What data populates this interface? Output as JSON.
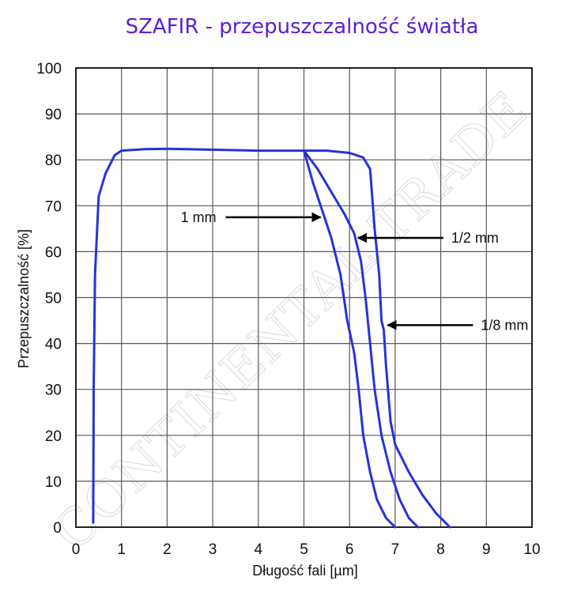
{
  "chart_data": {
    "type": "line",
    "title": "SZAFIR - przepuszczalność światła",
    "xlabel": "Długość fali [µm]",
    "ylabel": "Przepuszczalność [%]",
    "xlim": [
      0,
      10
    ],
    "ylim": [
      0,
      100
    ],
    "x_ticks": [
      0,
      1,
      2,
      3,
      4,
      5,
      6,
      7,
      8,
      9,
      10
    ],
    "y_ticks": [
      0,
      10,
      20,
      30,
      40,
      50,
      60,
      70,
      80,
      90,
      100
    ],
    "grid": true,
    "line_color": "#2733d6",
    "series": [
      {
        "name": "1/8 mm",
        "points": [
          [
            0.38,
            1
          ],
          [
            0.39,
            30
          ],
          [
            0.42,
            55
          ],
          [
            0.5,
            72
          ],
          [
            0.65,
            77
          ],
          [
            0.85,
            81
          ],
          [
            1.0,
            82
          ],
          [
            1.5,
            82.3
          ],
          [
            2.0,
            82.4
          ],
          [
            3.0,
            82.2
          ],
          [
            4.0,
            82.0
          ],
          [
            5.0,
            82.0
          ],
          [
            5.5,
            82.0
          ],
          [
            6.0,
            81.5
          ],
          [
            6.3,
            80.5
          ],
          [
            6.45,
            78
          ],
          [
            6.55,
            65
          ],
          [
            6.65,
            55
          ],
          [
            6.7,
            45
          ],
          [
            6.75,
            43
          ],
          [
            6.8,
            35
          ],
          [
            6.9,
            23
          ],
          [
            7.0,
            18
          ],
          [
            7.3,
            12
          ],
          [
            7.6,
            7
          ],
          [
            7.9,
            3
          ],
          [
            8.2,
            0
          ]
        ]
      },
      {
        "name": "1/2 mm",
        "points": [
          [
            5.0,
            82.0
          ],
          [
            5.3,
            78
          ],
          [
            5.6,
            73
          ],
          [
            5.9,
            68
          ],
          [
            6.1,
            64
          ],
          [
            6.25,
            58
          ],
          [
            6.35,
            50
          ],
          [
            6.45,
            40
          ],
          [
            6.55,
            30
          ],
          [
            6.7,
            20
          ],
          [
            6.9,
            12
          ],
          [
            7.1,
            6
          ],
          [
            7.3,
            2
          ],
          [
            7.5,
            0
          ]
        ]
      },
      {
        "name": "1 mm",
        "points": [
          [
            5.0,
            82.0
          ],
          [
            5.2,
            75
          ],
          [
            5.4,
            69
          ],
          [
            5.6,
            63
          ],
          [
            5.8,
            55
          ],
          [
            5.95,
            45
          ],
          [
            6.1,
            38
          ],
          [
            6.2,
            30
          ],
          [
            6.3,
            20
          ],
          [
            6.45,
            12
          ],
          [
            6.6,
            6
          ],
          [
            6.8,
            2
          ],
          [
            7.0,
            0
          ]
        ]
      }
    ],
    "annotations": [
      {
        "text": "1 mm",
        "target": [
          5.4,
          67.5
        ],
        "side": "left"
      },
      {
        "text": "1/2 mm",
        "target": [
          6.15,
          63
        ],
        "side": "right"
      },
      {
        "text": "1/8 mm",
        "target": [
          6.8,
          44
        ],
        "side": "right"
      }
    ],
    "watermark": "CONTINENTAL TRADE"
  }
}
